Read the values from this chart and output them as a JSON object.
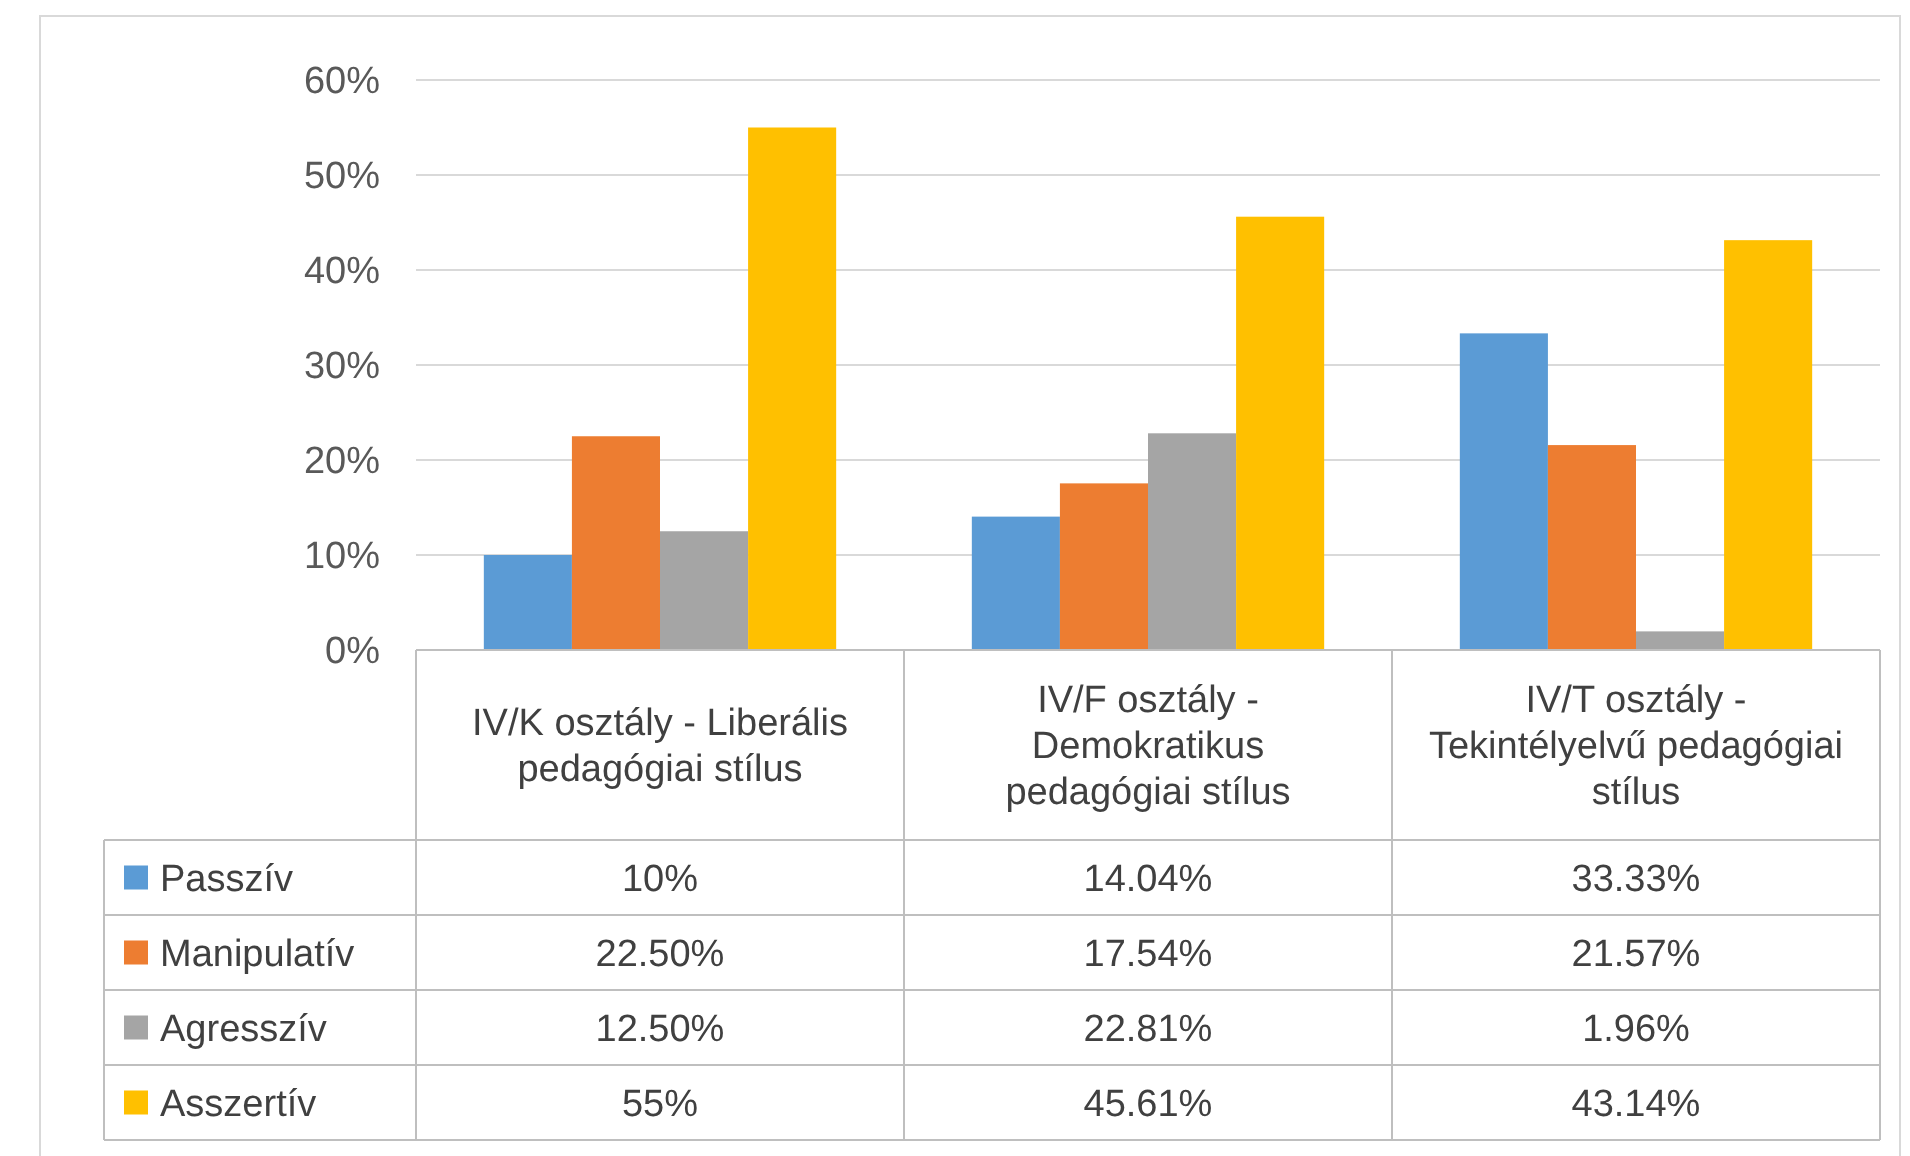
{
  "chart_data": {
    "type": "bar",
    "categories": [
      "IV/K osztály - Liberális pedagógiai stílus",
      "IV/F osztály - Demokratikus pedagógiai stílus",
      "IV/T osztály - Tekintélyelvű pedagógiai stílus"
    ],
    "series": [
      {
        "name": "Passzív",
        "color": "#5b9bd5",
        "values": [
          10,
          14.04,
          33.33
        ],
        "value_labels": [
          "10%",
          "14.04%",
          "33.33%"
        ]
      },
      {
        "name": "Manipulatív",
        "color": "#ed7d31",
        "values": [
          22.5,
          17.54,
          21.57
        ],
        "value_labels": [
          "22.50%",
          "17.54%",
          "21.57%"
        ]
      },
      {
        "name": "Agresszív",
        "color": "#a5a5a5",
        "values": [
          12.5,
          22.81,
          1.96
        ],
        "value_labels": [
          "12.50%",
          "22.81%",
          "1.96%"
        ]
      },
      {
        "name": "Asszertív",
        "color": "#ffc000",
        "values": [
          55,
          45.61,
          43.14
        ],
        "value_labels": [
          "55%",
          "45.61%",
          "43.14%"
        ]
      }
    ],
    "ylim": [
      0,
      60
    ],
    "yticks": [
      {
        "value": 0,
        "label": "0%"
      },
      {
        "value": 10,
        "label": "10%"
      },
      {
        "value": 20,
        "label": "20%"
      },
      {
        "value": 30,
        "label": "30%"
      },
      {
        "value": 40,
        "label": "40%"
      },
      {
        "value": 50,
        "label": "50%"
      },
      {
        "value": 60,
        "label": "60%"
      }
    ],
    "grid": "y",
    "legend": "bottom"
  }
}
